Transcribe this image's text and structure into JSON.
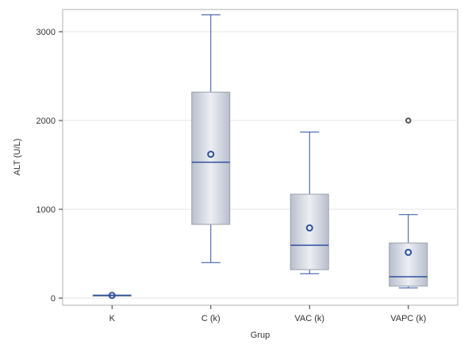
{
  "chart_data": {
    "type": "boxplot",
    "xlabel": "Grup",
    "ylabel": "ALT (U/L)",
    "ylim": [
      -80,
      3250
    ],
    "yticks": [
      0,
      1000,
      2000,
      3000
    ],
    "ytick_labels": [
      "0",
      "1000",
      "2000",
      "3000"
    ],
    "grid": true,
    "categories": [
      "K",
      "C (k)",
      "VAC (k)",
      "VAPC (k)"
    ],
    "boxes": [
      {
        "category": "K",
        "whisker_low": 25,
        "q1": 25,
        "median": 30,
        "q3": 35,
        "whisker_high": 35,
        "mean": 30,
        "outliers": []
      },
      {
        "category": "C (k)",
        "whisker_low": 400,
        "q1": 830,
        "median": 1530,
        "q3": 2320,
        "whisker_high": 3190,
        "mean": 1620,
        "outliers": []
      },
      {
        "category": "VAC (k)",
        "whisker_low": 275,
        "q1": 320,
        "median": 595,
        "q3": 1170,
        "whisker_high": 1870,
        "mean": 790,
        "outliers": []
      },
      {
        "category": "VAPC (k)",
        "whisker_low": 115,
        "q1": 135,
        "median": 240,
        "q3": 620,
        "whisker_high": 940,
        "mean": 515,
        "outliers": [
          2000
        ]
      }
    ],
    "colors": {
      "box_fill_edge": "#b8bfcc",
      "box_fill_center": "#eceef3",
      "box_stroke": "#9aa0aa",
      "line": "#2e4fa0",
      "outlier": "#555555",
      "grid": "#e6e6e6",
      "frame": "#b0b0b0"
    }
  }
}
